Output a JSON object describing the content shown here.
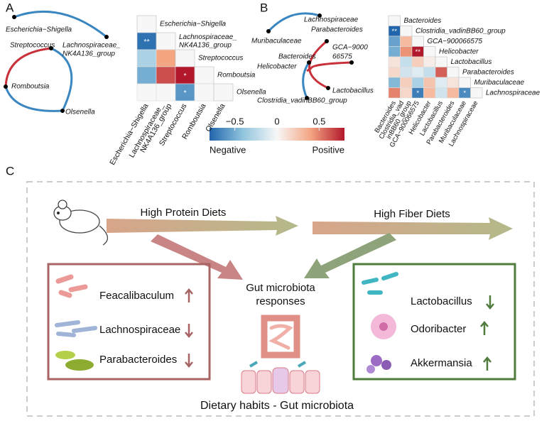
{
  "panel_a": {
    "label": "A",
    "network_nodes": [
      [
        "Escherichia−Shigella"
      ],
      [
        "Lachnospiraceae_",
        "NK4A136_group"
      ],
      [
        "Streptococcus"
      ],
      [
        "Romboutsia"
      ],
      [
        "Olsenella"
      ]
    ],
    "heatmap": {
      "row_labels": [
        [
          "Escherichia−Shigella"
        ],
        [
          "Lachnospiraceae_",
          "NK4A136_group"
        ],
        [
          "Streptococcus"
        ],
        [
          "Romboutsia"
        ],
        [
          "Olsenella"
        ]
      ],
      "column_labels": [
        [
          "Escherichia−Shigella"
        ],
        [
          "Lachnospiraceae_",
          "NK4A136_group"
        ],
        [
          "Streptococcus"
        ],
        [
          "Romboutsia"
        ],
        [
          "Olsenella"
        ]
      ],
      "values": [
        [],
        [
          -0.75
        ],
        [
          -0.3,
          0.4
        ],
        [
          -0.5,
          0.65,
          0.8
        ],
        [
          0.0,
          0.0,
          -0.6,
          0.0
        ]
      ],
      "significance": [
        [],
        [
          "**"
        ],
        [
          null,
          null
        ],
        [
          null,
          null,
          "*"
        ],
        [
          null,
          null,
          "*",
          null
        ]
      ]
    }
  },
  "panel_b": {
    "label": "B",
    "network_nodes": [
      [
        "Lachnospiraceae"
      ],
      [
        "Parabacteroides"
      ],
      [
        "Muribaculaceae"
      ],
      [
        "GCA−9000",
        "66575"
      ],
      [
        "Bacteroides"
      ],
      [
        "Helicobacter"
      ],
      [
        "Lactobacillus"
      ],
      [
        "Clostridia_vadinBB60_group"
      ]
    ],
    "heatmap": {
      "row_labels": [
        [
          "Bacteroides"
        ],
        [
          "Clostridia_vadinBB60_group"
        ],
        [
          "GCA−900066575"
        ],
        [
          "Helicobacter"
        ],
        [
          "Lactobacillus"
        ],
        [
          "Parabacteroides"
        ],
        [
          "Muribaculaceae"
        ],
        [
          "Lachnospiraceae"
        ]
      ],
      "column_labels": [
        [
          "Bacteroides"
        ],
        [
          "Clostridia_vad",
          "inBB60_group"
        ],
        [
          "GCA−900066575"
        ],
        [
          "Helicobacter"
        ],
        [
          "Lactobacillus"
        ],
        [
          "Parabacteroides"
        ],
        [
          "Muribaculaceae"
        ],
        [
          "Lachnospiraceae"
        ]
      ],
      "values": [
        [],
        [
          -0.8
        ],
        [
          -0.55,
          0.3
        ],
        [
          -0.5,
          0.45,
          0.85
        ],
        [
          0.1,
          -0.2,
          0.2,
          0.05
        ],
        [
          0.15,
          -0.15,
          -0.1,
          -0.2,
          0.6
        ],
        [
          -0.45,
          0.2,
          -0.3,
          0.25,
          -0.1,
          0.1
        ],
        [
          0.5,
          0.15,
          -0.7,
          0.3,
          -0.15,
          0.3,
          -0.65
        ]
      ],
      "significance": [
        [],
        [
          "**"
        ],
        [
          null,
          null
        ],
        [
          null,
          null,
          "**"
        ],
        [
          null,
          null,
          null,
          null
        ],
        [
          null,
          null,
          null,
          null,
          null
        ],
        [
          null,
          null,
          null,
          null,
          null,
          null
        ],
        [
          null,
          null,
          "*",
          null,
          null,
          null,
          "*"
        ]
      ]
    }
  },
  "color_scale": {
    "lim": [
      -0.8,
      0.8
    ],
    "ticks": [
      {
        "value": -0.5,
        "label": "−0.5"
      },
      0,
      0.5
    ],
    "negative_label": "Negative",
    "positive_label": "Positive"
  },
  "panel_c": {
    "label": "C",
    "high_protein": "High Protein Diets",
    "high_fiber": "High Fiber Diets",
    "center_lines": [
      "Gut microbiota",
      "responses"
    ],
    "left_items": [
      "Feacalibaculum",
      "Lachnospiraceae",
      "Parabacteroides"
    ],
    "right_items": [
      "Lactobacillus",
      "Odoribacter",
      "Akkermansia"
    ],
    "title": "Dietary habits - Gut microbiota"
  }
}
